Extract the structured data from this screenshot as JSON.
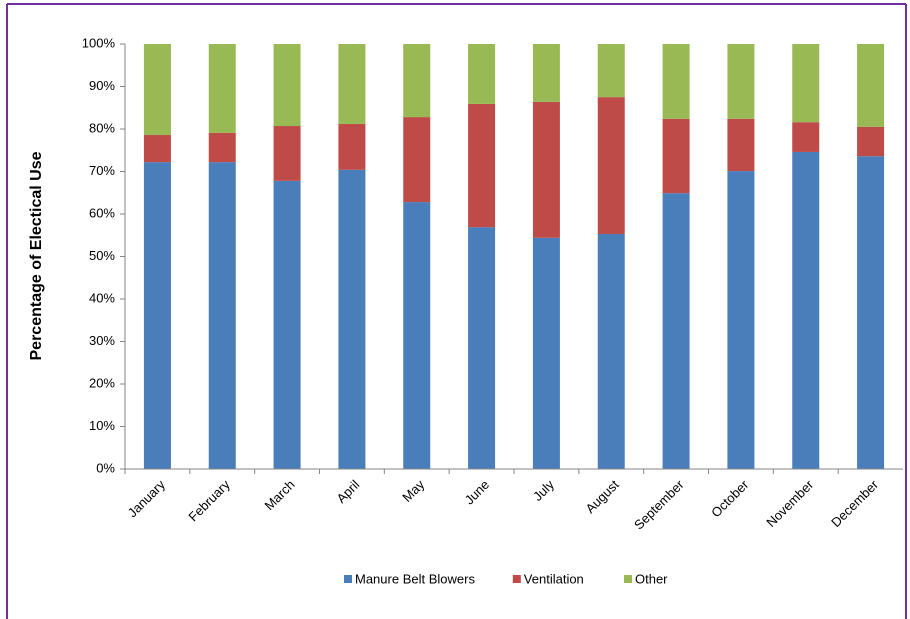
{
  "chart_data": {
    "type": "stacked_bar",
    "y_label": "Percentage of Electical Use",
    "categories": [
      "January",
      "February",
      "March",
      "April",
      "May",
      "June",
      "July",
      "August",
      "September",
      "October",
      "November",
      "December"
    ],
    "series": [
      {
        "name": "Manure Belt Blowers",
        "color": "#4a7ebb",
        "values": [
          72.2,
          72.2,
          67.8,
          70.4,
          62.8,
          56.9,
          54.4,
          55.3,
          64.9,
          70.1,
          74.6,
          73.6
        ]
      },
      {
        "name": "Ventilation",
        "color": "#be4b48",
        "values": [
          6.4,
          6.9,
          12.9,
          10.8,
          20.0,
          29.0,
          32.0,
          32.2,
          17.5,
          12.3,
          7.0,
          6.9
        ]
      },
      {
        "name": "Other",
        "color": "#98b954",
        "values": [
          21.4,
          20.9,
          19.3,
          18.8,
          17.2,
          14.1,
          13.6,
          12.5,
          17.6,
          17.6,
          18.4,
          19.5
        ]
      }
    ],
    "ylim": [
      0,
      100
    ],
    "yticks": [
      {
        "value": 0,
        "label": "0%"
      },
      {
        "value": 10,
        "label": "10%"
      },
      {
        "value": 20,
        "label": "20%"
      },
      {
        "value": 30,
        "label": "30%"
      },
      {
        "value": 40,
        "label": "40%"
      },
      {
        "value": 50,
        "label": "50%"
      },
      {
        "value": 60,
        "label": "60%"
      },
      {
        "value": 70,
        "label": "70%"
      },
      {
        "value": 80,
        "label": "80%"
      },
      {
        "value": 90,
        "label": "90%"
      },
      {
        "value": 100,
        "label": "100%"
      }
    ],
    "legend": "bottom"
  }
}
